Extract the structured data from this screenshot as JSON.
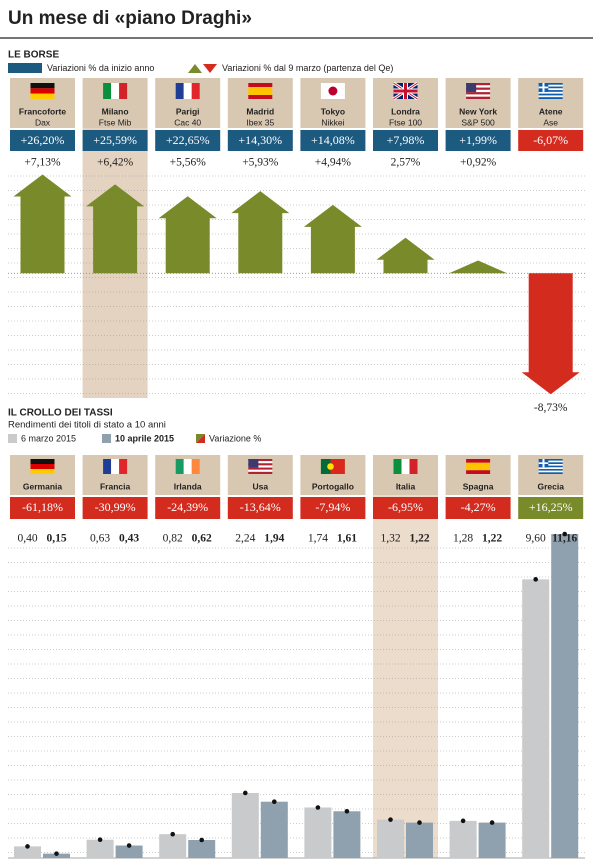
{
  "title": "Un mese di «piano Draghi»",
  "chart_data": [
    {
      "type": "arrow",
      "title": "LE BORSE",
      "categories": [
        "Francoforte",
        "Milano",
        "Parigi",
        "Madrid",
        "Tokyo",
        "Londra",
        "New York",
        "Atene"
      ],
      "category_subtitles": [
        "Dax",
        "Ftse Mib",
        "Cac 40",
        "Ibex 35",
        "Nikkei",
        "Ftse 100",
        "S&P 500",
        "Ase"
      ],
      "series": [
        {
          "name": "Variazioni % da inizio anno",
          "color": "#1d5a80",
          "negative_color": "#d42b1f",
          "values": [
            26.2,
            25.59,
            22.65,
            14.3,
            14.08,
            7.98,
            1.99,
            -6.07
          ],
          "value_labels": [
            "+26,20%",
            "+25,59%",
            "+22,65%",
            "+14,30%",
            "+14,08%",
            "+7,98%",
            "+1,99%",
            "-6,07%"
          ]
        },
        {
          "name": "Variazioni % dal 9 marzo (partenza del Qe)",
          "color": "#788a2a",
          "negative_color": "#d42b1f",
          "values": [
            7.13,
            6.42,
            5.56,
            5.93,
            4.94,
            2.57,
            0.92,
            -8.73
          ],
          "value_labels": [
            "+7,13%",
            "+6,42%",
            "+5,56%",
            "+5,93%",
            "+4,94%",
            "2,57%",
            "+0,92%",
            "-8,73%"
          ]
        }
      ],
      "ylim": [
        -9.0,
        7.6
      ],
      "highlight": 1
    },
    {
      "type": "bar",
      "title": "IL CROLLO DEI TASSI",
      "subtitle": "Rendimenti dei titoli di stato a 10 anni",
      "categories": [
        "Germania",
        "Francia",
        "Irlanda",
        "Usa",
        "Portogallo",
        "Italia",
        "Spagna",
        "Grecia"
      ],
      "series": [
        {
          "name": "6 marzo 2015",
          "color": "#c9cacb",
          "values": [
            0.4,
            0.63,
            0.82,
            2.24,
            1.74,
            1.32,
            1.28,
            9.6
          ],
          "value_labels": [
            "0,40",
            "0,63",
            "0,82",
            "2,24",
            "1,74",
            "1,32",
            "1,28",
            "9,60"
          ]
        },
        {
          "name": "10 aprile 2015",
          "color": "#8fa1ae",
          "values": [
            0.15,
            0.43,
            0.62,
            1.94,
            1.61,
            1.22,
            1.22,
            11.16
          ],
          "value_labels": [
            "0,15",
            "0,43",
            "0,62",
            "1,94",
            "1,61",
            "1,22",
            "1,22",
            "11,16"
          ]
        },
        {
          "name": "Variazione %",
          "color": "#788a2a",
          "negative_color": "#d42b1f",
          "values": [
            -61.18,
            -30.99,
            -24.39,
            -13.64,
            -7.94,
            -6.95,
            -4.27,
            16.25
          ],
          "value_labels": [
            "-61,18%",
            "-30,99%",
            "-24,39%",
            "-13,64%",
            "-7,94%",
            "-6,95%",
            "-4,27%",
            "+16,25%"
          ]
        }
      ],
      "ylim": [
        0,
        11.3
      ],
      "highlight": 5
    }
  ]
}
